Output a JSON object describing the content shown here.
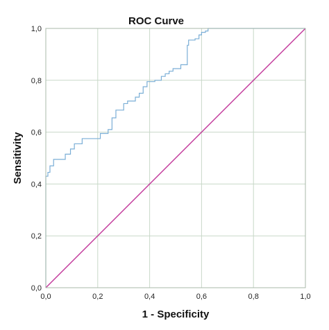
{
  "chart_data": {
    "type": "line",
    "title": "ROC Curve",
    "xlabel": "1 - Specificity",
    "ylabel": "Sensitivity",
    "xlim": [
      0,
      1
    ],
    "ylim": [
      0,
      1
    ],
    "grid": true,
    "xticks": [
      "0,0",
      "0,2",
      "0,4",
      "0,6",
      "0,8",
      "1,0"
    ],
    "yticks": [
      "0,0",
      "0,2",
      "0,4",
      "0,6",
      "0,8",
      "1,0"
    ],
    "tick_values": [
      0,
      0.2,
      0.4,
      0.6,
      0.8,
      1.0
    ],
    "colors": {
      "roc": "#7aaed6",
      "reference": "#c2369a",
      "grid": "#c8d8c8",
      "frame": "#aab8aa"
    },
    "series": [
      {
        "x": [
          0,
          0,
          0.008,
          0.008,
          0.016,
          0.016,
          0.03,
          0.03,
          0.075,
          0.075,
          0.095,
          0.095,
          0.11,
          0.11,
          0.14,
          0.14,
          0.21,
          0.21,
          0.24,
          0.24,
          0.255,
          0.255,
          0.27,
          0.27,
          0.3,
          0.3,
          0.315,
          0.315,
          0.345,
          0.345,
          0.36,
          0.36,
          0.375,
          0.375,
          0.39,
          0.39,
          0.42,
          0.42,
          0.445,
          0.445,
          0.46,
          0.46,
          0.475,
          0.475,
          0.49,
          0.49,
          0.52,
          0.52,
          0.545,
          0.545,
          0.55,
          0.55,
          0.575,
          0.575,
          0.59,
          0.59,
          0.6,
          0.6,
          0.615,
          0.615,
          0.625,
          0.625,
          1.0
        ],
        "y": [
          0,
          0.43,
          0.43,
          0.445,
          0.445,
          0.47,
          0.47,
          0.495,
          0.495,
          0.515,
          0.515,
          0.535,
          0.535,
          0.555,
          0.555,
          0.575,
          0.575,
          0.595,
          0.595,
          0.61,
          0.61,
          0.655,
          0.655,
          0.685,
          0.685,
          0.71,
          0.71,
          0.72,
          0.72,
          0.735,
          0.735,
          0.75,
          0.75,
          0.775,
          0.775,
          0.795,
          0.795,
          0.8,
          0.8,
          0.815,
          0.815,
          0.825,
          0.825,
          0.835,
          0.835,
          0.845,
          0.845,
          0.86,
          0.86,
          0.935,
          0.935,
          0.955,
          0.955,
          0.96,
          0.96,
          0.975,
          0.975,
          0.985,
          0.985,
          0.99,
          0.99,
          1.0,
          1.0
        ]
      },
      {
        "x": [
          0,
          1
        ],
        "y": [
          0,
          1
        ]
      }
    ]
  }
}
